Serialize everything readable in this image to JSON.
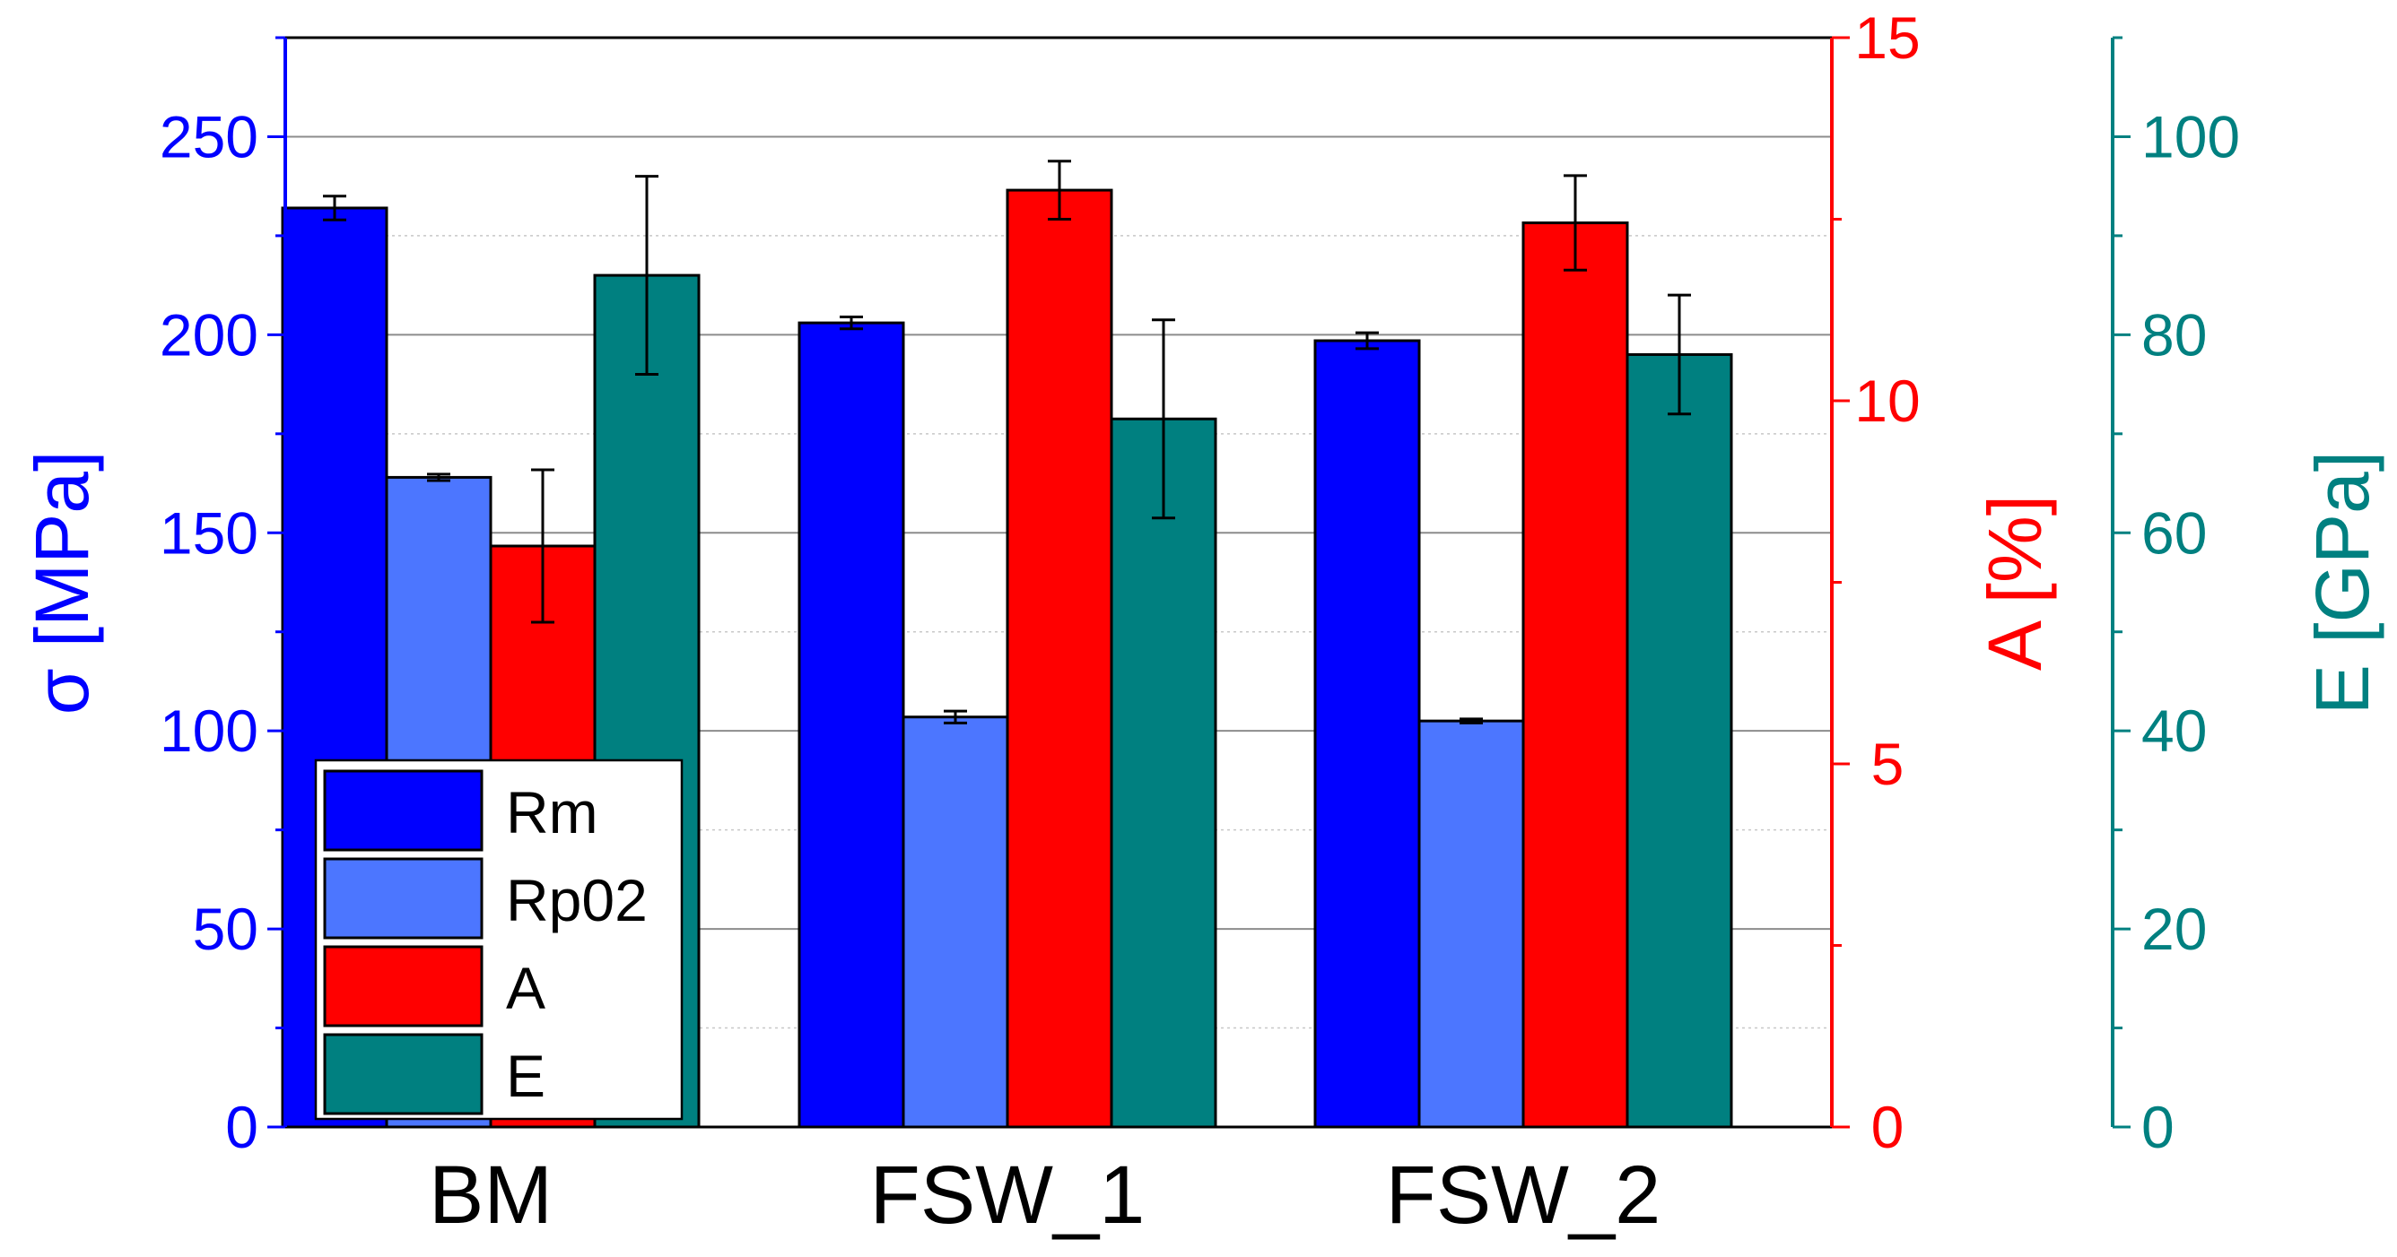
{
  "chart_data": {
    "type": "bar",
    "categories": [
      "BM",
      "FSW_1",
      "FSW_2"
    ],
    "series": [
      {
        "name": "Rm",
        "axis": "left",
        "color": "#0000ff",
        "values": [
          232,
          203,
          198.5
        ],
        "errors": [
          3,
          1.5,
          2
        ]
      },
      {
        "name": "Rp02",
        "axis": "left",
        "color": "#4c76ff",
        "values": [
          164,
          103.5,
          102.5
        ],
        "errors": [
          0.8,
          1.5,
          0.5
        ]
      },
      {
        "name": "A",
        "axis": "right1",
        "color": "#ff0000",
        "values": [
          8.0,
          12.9,
          12.45
        ],
        "errors": [
          1.05,
          0.4,
          0.65
        ]
      },
      {
        "name": "E",
        "axis": "right2",
        "color": "#008080",
        "values": [
          86,
          71.5,
          78
        ],
        "errors": [
          10,
          10,
          6
        ]
      }
    ],
    "axes": {
      "left": {
        "label": "σ [MPa]",
        "min": 0,
        "max": 275,
        "major_ticks": [
          0,
          50,
          100,
          150,
          200,
          250
        ],
        "minor_step": 25,
        "color": "#0000ff"
      },
      "right1": {
        "label": "A [%]",
        "min": 0,
        "max": 15,
        "major_ticks": [
          0,
          5,
          10,
          15
        ],
        "minor_step": 2.5,
        "color": "#ff0000"
      },
      "right2": {
        "label": "E [GPa]",
        "min": 0,
        "max": 110,
        "major_ticks": [
          0,
          20,
          40,
          60,
          80,
          100
        ],
        "minor_step": 10,
        "color": "#008080"
      }
    },
    "grid": true,
    "legend": {
      "placement": "bottom-left",
      "entries": [
        "Rm",
        "Rp02",
        "A",
        "E"
      ]
    }
  }
}
